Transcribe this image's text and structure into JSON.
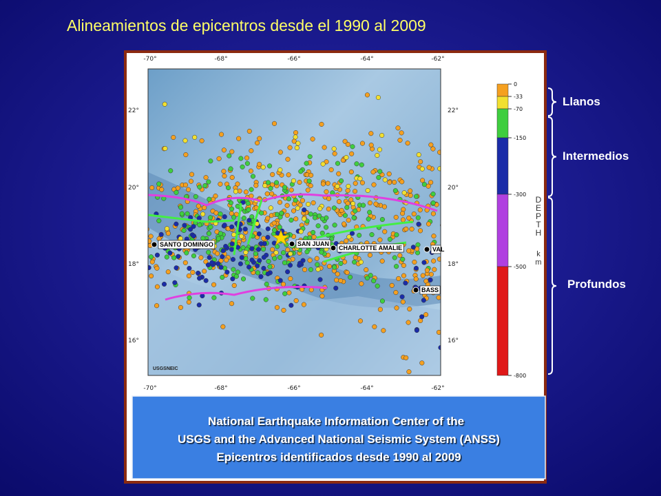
{
  "title": "Alineamientos de epicentros desde el 1990 al 2009",
  "map": {
    "longitudes": [
      "-70°",
      "-68°",
      "-66°",
      "-64°",
      "-62°"
    ],
    "latitudes": [
      "22°",
      "20°",
      "18°",
      "16°"
    ],
    "cities": [
      "SANTO DOMINGO",
      "SAN JUAN",
      "CHARLOTTE AMALIE",
      "VAL",
      "BASS"
    ],
    "credit": "USGSNEIC"
  },
  "depth_scale": {
    "labels": [
      0,
      -33,
      -70,
      -150,
      -300,
      -500,
      -800
    ],
    "title_letters": [
      "D",
      "E",
      "P",
      "T",
      "H"
    ],
    "unit_letters": [
      "k",
      "m"
    ]
  },
  "groups": [
    "Llanos",
    "Intermedios",
    "Profundos"
  ],
  "caption": [
    "National Earthquake Information Center of the",
    "USGS and the Advanced National Seismic System (ANSS)",
    "Epicentros identificados desde 1990 al 2009"
  ]
}
